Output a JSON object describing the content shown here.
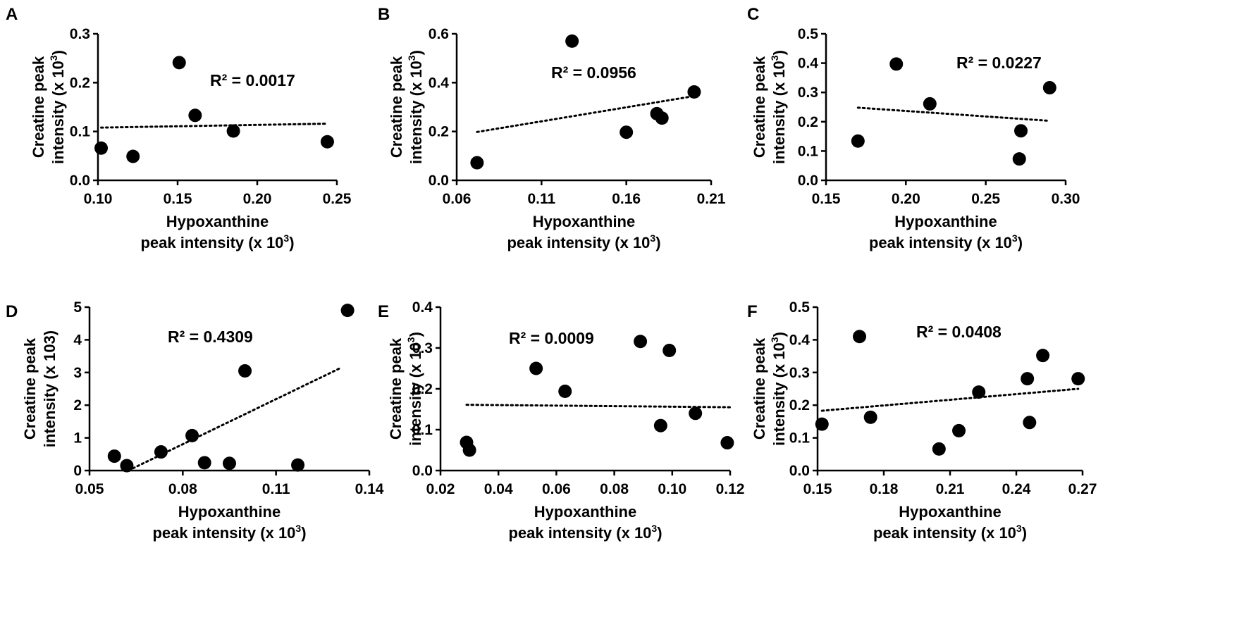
{
  "chart_data": [
    {
      "panel": "A",
      "type": "scatter",
      "trendline": "linear-dotted",
      "xlabel_lines": [
        "Hypoxanthine",
        "peak intensity (x 10",
        "3",
        ")"
      ],
      "ylabel_lines": [
        "Creatine peak",
        "intensity (x 10",
        "3",
        ")"
      ],
      "r2": "R² = 0.0017",
      "xlim": [
        0.1,
        0.25
      ],
      "ylim": [
        0,
        0.3
      ],
      "xticks": [
        "0.10",
        "0.15",
        "0.20",
        "0.25"
      ],
      "yticks": [
        "0.0",
        "0.1",
        "0.2",
        "0.3"
      ],
      "points": [
        [
          0.102,
          0.066
        ],
        [
          0.122,
          0.049
        ],
        [
          0.151,
          0.241
        ],
        [
          0.161,
          0.133
        ],
        [
          0.185,
          0.101
        ],
        [
          0.244,
          0.079
        ]
      ],
      "trend": [
        [
          0.102,
          0.108
        ],
        [
          0.244,
          0.116
        ]
      ]
    },
    {
      "panel": "B",
      "type": "scatter",
      "trendline": "linear-dotted",
      "xlabel_lines": [
        "Hypoxanthine",
        "peak intensity (x 10",
        "3",
        ")"
      ],
      "ylabel_lines": [
        "Creatine peak",
        "intensity (x 10",
        "3",
        ")"
      ],
      "r2": "R² = 0.0956",
      "xlim": [
        0.06,
        0.21
      ],
      "ylim": [
        0,
        0.6
      ],
      "xticks": [
        "0.06",
        "0.11",
        "0.16",
        "0.21"
      ],
      "yticks": [
        "0.0",
        "0.2",
        "0.4",
        "0.6"
      ],
      "points": [
        [
          0.072,
          0.072
        ],
        [
          0.128,
          0.57
        ],
        [
          0.16,
          0.197
        ],
        [
          0.178,
          0.273
        ],
        [
          0.181,
          0.255
        ],
        [
          0.2,
          0.362
        ]
      ],
      "trend": [
        [
          0.072,
          0.198
        ],
        [
          0.2,
          0.345
        ]
      ]
    },
    {
      "panel": "C",
      "type": "scatter",
      "trendline": "linear-dotted",
      "xlabel_lines": [
        "Hypoxanthine",
        "peak intensity (x 10",
        "3",
        ")"
      ],
      "ylabel_lines": [
        "Creatine peak",
        "intensity (x 10",
        "3",
        ")"
      ],
      "r2": "R² = 0.0227",
      "xlim": [
        0.15,
        0.3
      ],
      "ylim": [
        0,
        0.5
      ],
      "xticks": [
        "0.15",
        "0.20",
        "0.25",
        "0.30"
      ],
      "yticks": [
        "0.0",
        "0.1",
        "0.2",
        "0.3",
        "0.4",
        "0.5"
      ],
      "points": [
        [
          0.17,
          0.134
        ],
        [
          0.194,
          0.397
        ],
        [
          0.215,
          0.261
        ],
        [
          0.271,
          0.073
        ],
        [
          0.272,
          0.169
        ],
        [
          0.29,
          0.316
        ]
      ],
      "trend": [
        [
          0.17,
          0.248
        ],
        [
          0.29,
          0.203
        ]
      ]
    },
    {
      "panel": "D",
      "type": "scatter",
      "trendline": "linear-dotted",
      "xlabel_lines": [
        "Hypoxanthine",
        "peak intensity (x 10",
        "3",
        ")"
      ],
      "ylabel_lines": [
        "Creatine peak",
        "intensity (x 103)"
      ],
      "r2": "R² = 0.4309",
      "xlim": [
        0.05,
        0.14
      ],
      "ylim": [
        0,
        5
      ],
      "xticks": [
        "0.05",
        "0.08",
        "0.11",
        "0.14"
      ],
      "yticks": [
        "0",
        "1",
        "2",
        "3",
        "4",
        "5"
      ],
      "points": [
        [
          0.058,
          0.44
        ],
        [
          0.062,
          0.15
        ],
        [
          0.073,
          0.57
        ],
        [
          0.083,
          1.07
        ],
        [
          0.087,
          0.24
        ],
        [
          0.095,
          0.22
        ],
        [
          0.1,
          3.05
        ],
        [
          0.117,
          0.17
        ],
        [
          0.133,
          4.9
        ]
      ],
      "trend": [
        [
          0.064,
          0.07
        ],
        [
          0.131,
          3.15
        ]
      ]
    },
    {
      "panel": "E",
      "type": "scatter",
      "trendline": "linear-dotted",
      "xlabel_lines": [
        "Hypoxanthine",
        "peak intensity (x 10",
        "3",
        ")"
      ],
      "ylabel_lines": [
        "Creatine peak",
        "intensity (x 10",
        "3",
        ")"
      ],
      "r2": "R² = 0.0009",
      "xlim": [
        0.02,
        0.12
      ],
      "ylim": [
        0,
        0.4
      ],
      "xticks": [
        "0.02",
        "0.04",
        "0.06",
        "0.08",
        "0.10",
        "0.12"
      ],
      "yticks": [
        "0.0",
        "0.1",
        "0.2",
        "0.3",
        "0.4"
      ],
      "points": [
        [
          0.029,
          0.069
        ],
        [
          0.03,
          0.05
        ],
        [
          0.053,
          0.25
        ],
        [
          0.063,
          0.194
        ],
        [
          0.089,
          0.316
        ],
        [
          0.099,
          0.294
        ],
        [
          0.096,
          0.11
        ],
        [
          0.108,
          0.14
        ],
        [
          0.119,
          0.068
        ]
      ],
      "trend": [
        [
          0.029,
          0.161
        ],
        [
          0.12,
          0.155
        ]
      ]
    },
    {
      "panel": "F",
      "type": "scatter",
      "trendline": "linear-dotted",
      "xlabel_lines": [
        "Hypoxanthine",
        "peak intensity (x 10",
        "3",
        ")"
      ],
      "ylabel_lines": [
        "Creatine peak",
        "intensity (x 10",
        "3",
        ")"
      ],
      "r2": "R² = 0.0408",
      "xlim": [
        0.15,
        0.27
      ],
      "ylim": [
        0,
        0.5
      ],
      "xticks": [
        "0.15",
        "0.18",
        "0.21",
        "0.24",
        "0.27"
      ],
      "yticks": [
        "0.0",
        "0.1",
        "0.2",
        "0.3",
        "0.4",
        "0.5"
      ],
      "points": [
        [
          0.152,
          0.142
        ],
        [
          0.169,
          0.41
        ],
        [
          0.174,
          0.163
        ],
        [
          0.205,
          0.066
        ],
        [
          0.214,
          0.122
        ],
        [
          0.223,
          0.24
        ],
        [
          0.245,
          0.281
        ],
        [
          0.246,
          0.147
        ],
        [
          0.252,
          0.352
        ],
        [
          0.268,
          0.281
        ]
      ],
      "trend": [
        [
          0.152,
          0.183
        ],
        [
          0.268,
          0.25
        ]
      ]
    }
  ]
}
